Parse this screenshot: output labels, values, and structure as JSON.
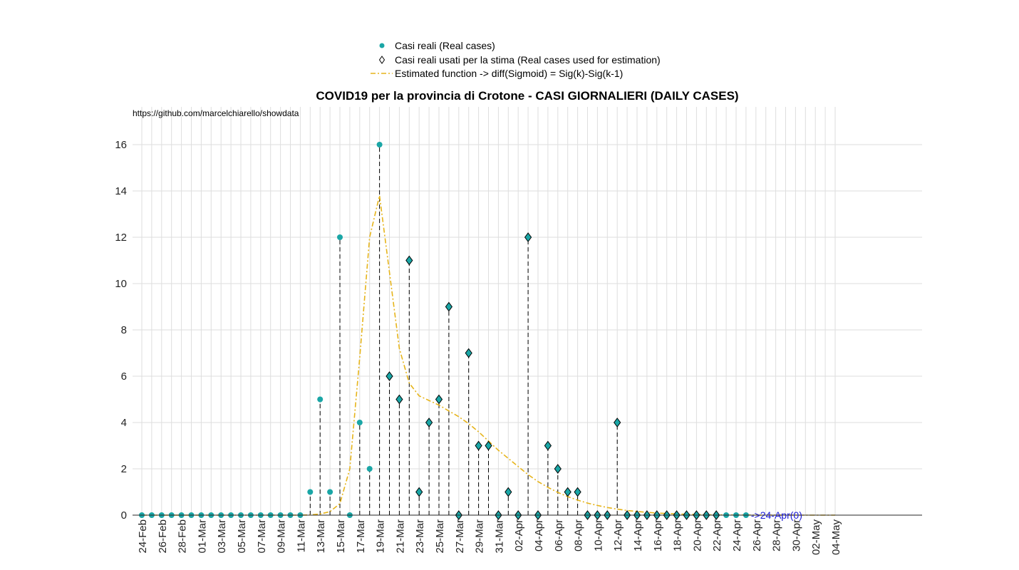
{
  "chart_data": {
    "type": "scatter",
    "title": "COVID19 per la provincia di Crotone - CASI GIORNALIERI (DAILY CASES)",
    "source_note": "https://github.com/marcelchiarello/showdata",
    "annotation": "->24-Apr(0)",
    "xlabel": "",
    "ylabel": "",
    "ylim": [
      0,
      17.5
    ],
    "yticks": [
      0,
      2,
      4,
      6,
      8,
      10,
      12,
      14,
      16
    ],
    "grid": true,
    "legend_position": "top-center",
    "x_tick_labels": [
      "24-Feb",
      "26-Feb",
      "28-Feb",
      "01-Mar",
      "03-Mar",
      "05-Mar",
      "07-Mar",
      "09-Mar",
      "11-Mar",
      "13-Mar",
      "15-Mar",
      "17-Mar",
      "19-Mar",
      "21-Mar",
      "23-Mar",
      "25-Mar",
      "27-Mar",
      "29-Mar",
      "31-Mar",
      "02-Apr",
      "04-Apr",
      "06-Apr",
      "08-Apr",
      "10-Apr",
      "12-Apr",
      "14-Apr",
      "16-Apr",
      "18-Apr",
      "20-Apr",
      "22-Apr",
      "24-Apr",
      "26-Apr",
      "28-Apr",
      "30-Apr",
      "02-May",
      "04-May"
    ],
    "start_date": "24-Feb",
    "series": [
      {
        "name": "Casi reali (Real cases)",
        "color": "#1aa6a6",
        "marker": "circle",
        "values": [
          0,
          0,
          0,
          0,
          0,
          0,
          0,
          0,
          0,
          0,
          0,
          0,
          0,
          0,
          0,
          0,
          0,
          1,
          5,
          1,
          12,
          0,
          4,
          2,
          16,
          6,
          5,
          11,
          1,
          4,
          5,
          9,
          0,
          7,
          3,
          3,
          0,
          1,
          0,
          12,
          0,
          3,
          2,
          1,
          1,
          0,
          0,
          0,
          4,
          0,
          0,
          0,
          0,
          0,
          0,
          0,
          0,
          0,
          0,
          0,
          0,
          0
        ]
      },
      {
        "name": "Casi reali usati per la stima (Real cases used for estimation)",
        "color": "#1aa6a6",
        "marker": "diamond",
        "start_index": 25,
        "values": [
          6,
          5,
          11,
          1,
          4,
          5,
          9,
          0,
          7,
          3,
          3,
          0,
          1,
          0,
          12,
          0,
          3,
          2,
          1,
          1,
          0,
          0,
          0,
          4,
          0,
          0,
          0,
          0,
          0,
          0,
          0,
          0,
          0,
          0
        ]
      },
      {
        "name": "Estimated function -> diff(Sigmoid) = Sig(k)-Sig(k-1)",
        "color": "#e6b41a",
        "style": "dash-dot",
        "values": [
          0,
          0,
          0,
          0,
          0,
          0,
          0,
          0,
          0,
          0,
          0,
          0,
          0,
          0,
          0,
          0,
          0,
          0.01,
          0.05,
          0.15,
          0.5,
          2.0,
          6.8,
          12.0,
          13.8,
          10.5,
          7.2,
          5.7,
          5.15,
          4.95,
          4.75,
          4.5,
          4.25,
          3.95,
          3.6,
          3.2,
          2.8,
          2.45,
          2.1,
          1.75,
          1.45,
          1.2,
          0.98,
          0.8,
          0.65,
          0.52,
          0.42,
          0.33,
          0.26,
          0.2,
          0.16,
          0.12,
          0.09,
          0.07,
          0.05,
          0.04,
          0.03,
          0.02,
          0.015,
          0.01,
          0.008,
          0.006,
          0.004,
          0.003,
          0.002,
          0.002,
          0.001,
          0.001,
          0.001,
          0.001,
          0.001
        ]
      }
    ]
  }
}
